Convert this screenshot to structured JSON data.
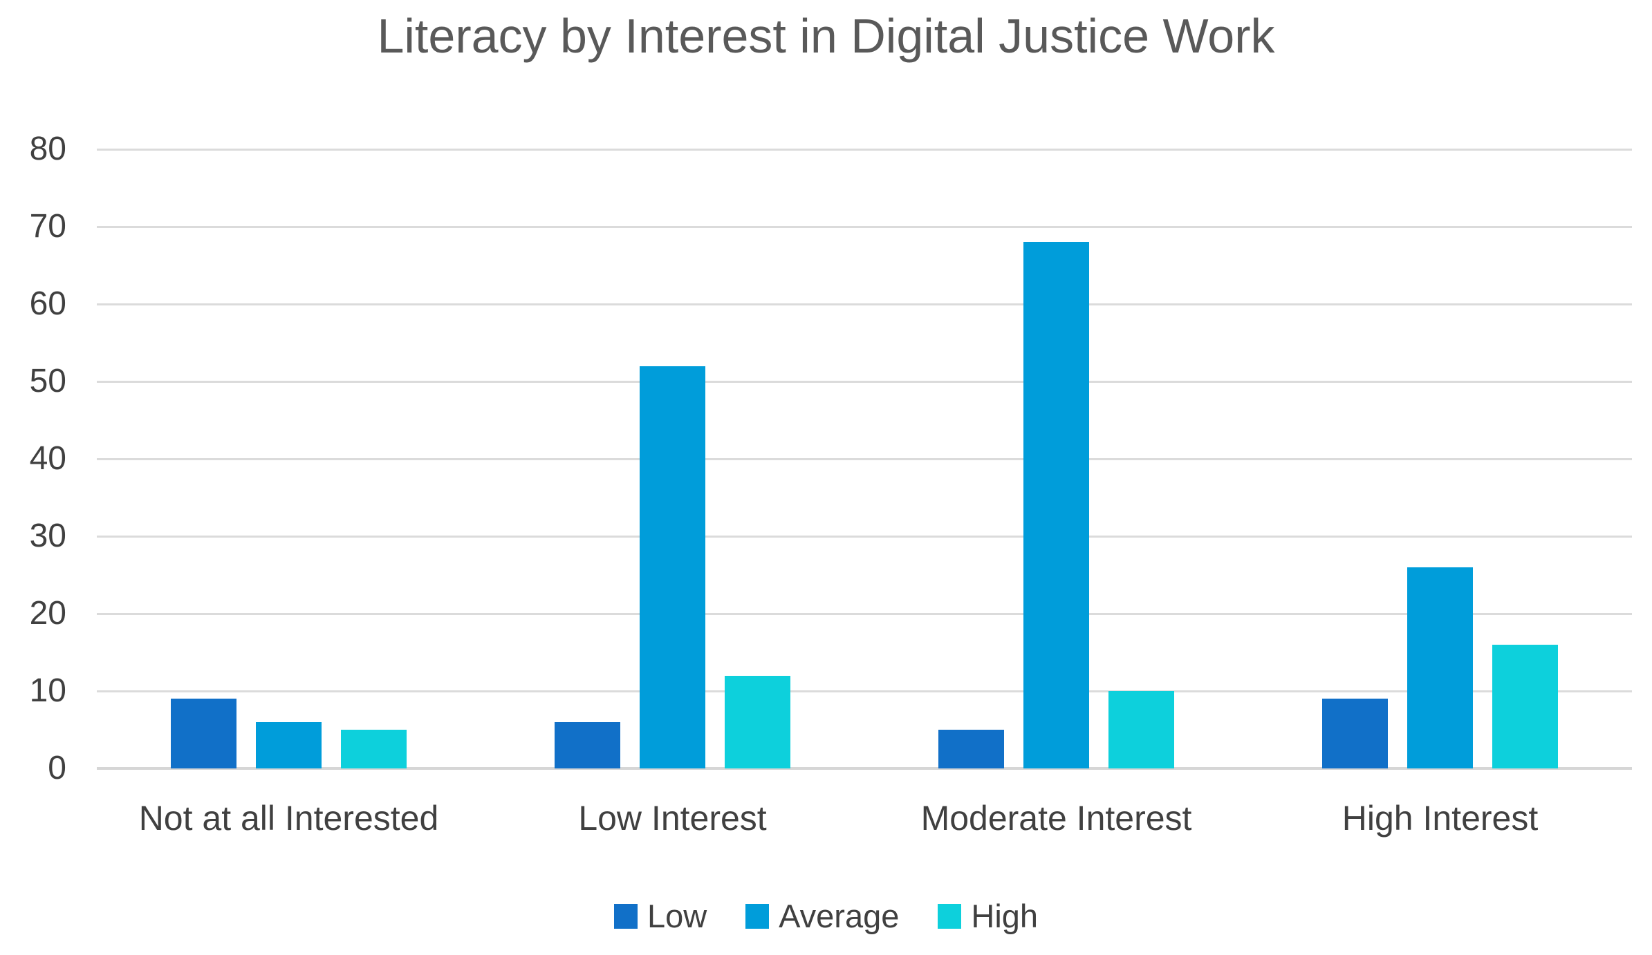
{
  "chart_data": {
    "type": "bar",
    "title": "Literacy by Interest in Digital Justice Work",
    "categories": [
      "Not at all Interested",
      "Low Interest",
      "Moderate Interest",
      "High Interest"
    ],
    "series": [
      {
        "name": "Low",
        "color": "#1170C8",
        "values": [
          9,
          6,
          5,
          9
        ]
      },
      {
        "name": "Average",
        "color": "#009DDA",
        "values": [
          6,
          52,
          68,
          26
        ]
      },
      {
        "name": "High",
        "color": "#0DD0DC",
        "values": [
          5,
          12,
          10,
          16
        ]
      }
    ],
    "xlabel": "",
    "ylabel": "",
    "ylim": [
      0,
      80
    ],
    "ytick_step": 10,
    "ytick_labels": [
      "0",
      "10",
      "20",
      "30",
      "40",
      "50",
      "60",
      "70",
      "80"
    ],
    "grid": true,
    "legend_position": "bottom"
  },
  "styles": {
    "background": "#FFFFFF",
    "title_color": "#595959",
    "axis_label_color": "#404040",
    "gridline_color": "#DBDBDB",
    "axis_line_color": "#D6D6D6"
  }
}
